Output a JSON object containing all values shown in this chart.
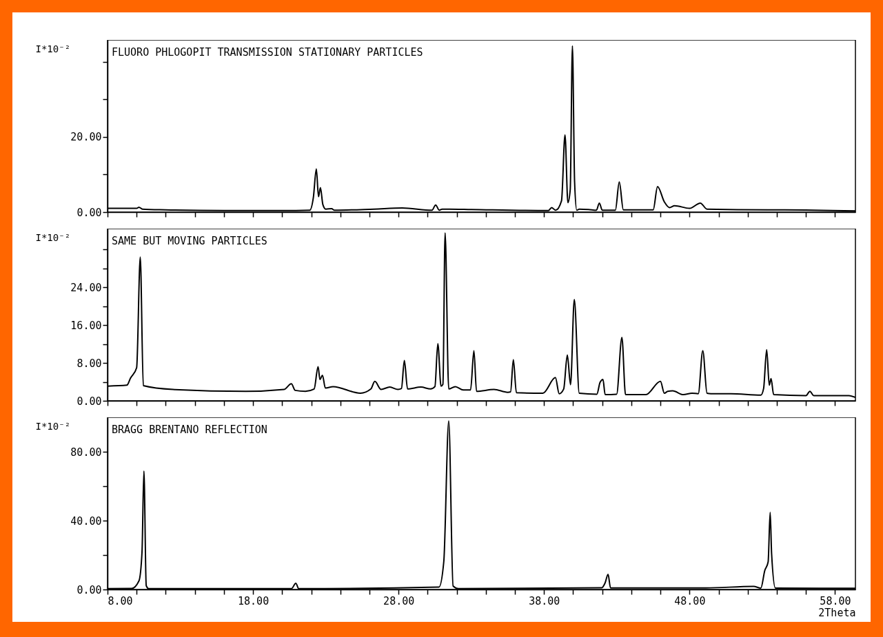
{
  "chart_data": [
    {
      "type": "line",
      "title": "FLUORO PHLOGOPIT TRANSMISSION STATIONARY PARTICLES",
      "ylabel": "I*10⁻²",
      "color": "#000000",
      "tick_labels": "y",
      "x": [
        8,
        10.0,
        10.16,
        10.4,
        12,
        16,
        20,
        21.9,
        22.15,
        22.35,
        22.5,
        22.63,
        22.8,
        23.0,
        23.4,
        23.6,
        26.3,
        28.26,
        30.3,
        30.55,
        30.8,
        31.0,
        31.5,
        33.0,
        38.3,
        38.52,
        38.8,
        39.2,
        39.44,
        39.64,
        39.8,
        39.95,
        40.1,
        40.25,
        40.42,
        41.06,
        41.6,
        41.8,
        42.0,
        42.9,
        43.17,
        43.45,
        45.5,
        45.8,
        46.27,
        46.62,
        46.97,
        48.0,
        48.74,
        49.2,
        53.4,
        54.55,
        59.4
      ],
      "values": [
        1.0,
        1.0,
        1.3,
        0.8,
        0.6,
        0.4,
        0.4,
        0.5,
        4.0,
        11.5,
        4.1,
        6.5,
        2.0,
        0.8,
        0.9,
        0.5,
        0.8,
        1.1,
        0.5,
        1.9,
        0.5,
        0.8,
        0.8,
        0.7,
        0.4,
        1.2,
        0.5,
        3.0,
        20.5,
        2.5,
        6.0,
        44.2,
        8.0,
        0.5,
        0.8,
        0.7,
        0.5,
        2.4,
        0.5,
        0.5,
        8.0,
        0.6,
        0.6,
        6.8,
        2.7,
        1.2,
        1.7,
        1.0,
        2.4,
        0.8,
        0.6,
        0.6,
        0.3
      ],
      "xlim": [
        8,
        59.4
      ],
      "ylim": [
        0,
        45.8
      ],
      "xticks": [
        {
          "value": 8,
          "label": null
        },
        {
          "value": 10,
          "label": null
        },
        {
          "value": 12,
          "label": null
        },
        {
          "value": 14,
          "label": null
        },
        {
          "value": 16,
          "label": null
        },
        {
          "value": 18,
          "label": null
        },
        {
          "value": 20,
          "label": null
        },
        {
          "value": 22,
          "label": null
        },
        {
          "value": 24,
          "label": null
        },
        {
          "value": 26,
          "label": null
        },
        {
          "value": 28,
          "label": null
        },
        {
          "value": 30,
          "label": null
        },
        {
          "value": 32,
          "label": null
        },
        {
          "value": 34,
          "label": null
        },
        {
          "value": 36,
          "label": null
        },
        {
          "value": 38,
          "label": null
        },
        {
          "value": 40,
          "label": null
        },
        {
          "value": 42,
          "label": null
        },
        {
          "value": 44,
          "label": null
        },
        {
          "value": 46,
          "label": null
        },
        {
          "value": 48,
          "label": null
        },
        {
          "value": 50,
          "label": null
        },
        {
          "value": 52,
          "label": null
        },
        {
          "value": 54,
          "label": null
        },
        {
          "value": 56,
          "label": null
        },
        {
          "value": 58,
          "label": null
        }
      ],
      "yticks": [
        {
          "value": 0,
          "label": "0.00"
        },
        {
          "value": 10,
          "label": null
        },
        {
          "value": 20,
          "label": "20.00"
        },
        {
          "value": 30,
          "label": null
        },
        {
          "value": 40,
          "label": null
        }
      ]
    },
    {
      "type": "line",
      "title": "SAME BUT MOVING PARTICLES",
      "ylabel": "I*10⁻²",
      "color": "#000000",
      "tick_labels": "y",
      "x": [
        8,
        9.33,
        9.58,
        10.0,
        10.25,
        10.46,
        12.5,
        17.5,
        20.14,
        20.63,
        20.9,
        21.6,
        22.2,
        22.47,
        22.6,
        22.77,
        22.97,
        23.5,
        25.38,
        26.1,
        26.37,
        26.8,
        27.4,
        27.96,
        28.2,
        28.4,
        28.62,
        29.54,
        30.2,
        30.5,
        30.7,
        30.92,
        31.05,
        31.2,
        31.45,
        31.9,
        32.45,
        32.95,
        33.18,
        33.36,
        34.56,
        35.5,
        35.7,
        35.89,
        36.1,
        37.92,
        38.78,
        39.04,
        39.35,
        39.6,
        39.82,
        40.08,
        40.42,
        41.63,
        41.85,
        42.05,
        42.2,
        42.99,
        43.35,
        43.6,
        45.0,
        46.0,
        46.27,
        46.5,
        46.84,
        47.57,
        48.17,
        48.6,
        48.91,
        49.2,
        49.47,
        50.84,
        52.9,
        53.09,
        53.3,
        53.48,
        53.6,
        53.78,
        56.0,
        56.27,
        56.53,
        58.95,
        59.4
      ],
      "values": [
        3.1,
        3.3,
        4.8,
        7.0,
        30.4,
        3.2,
        2.4,
        2.0,
        2.4,
        3.6,
        2.2,
        2.0,
        2.5,
        7.2,
        4.5,
        5.4,
        2.7,
        3.0,
        1.6,
        2.5,
        4.1,
        2.4,
        2.9,
        2.4,
        2.6,
        8.5,
        2.5,
        2.9,
        2.5,
        3.0,
        12.1,
        3.1,
        3.5,
        35.5,
        2.5,
        3.0,
        2.3,
        2.3,
        10.6,
        2.0,
        2.4,
        1.8,
        1.9,
        8.7,
        1.7,
        1.6,
        4.9,
        1.5,
        2.5,
        9.7,
        3.4,
        21.4,
        1.6,
        1.4,
        3.9,
        4.5,
        1.3,
        1.4,
        13.4,
        1.3,
        1.3,
        4.1,
        1.6,
        2.0,
        2.1,
        1.3,
        1.6,
        1.5,
        10.6,
        1.6,
        1.5,
        1.5,
        1.2,
        2.6,
        10.8,
        3.3,
        4.7,
        1.3,
        1.1,
        2.0,
        1.1,
        1.1,
        0.7
      ],
      "xlim": [
        8,
        59.4
      ],
      "ylim": [
        0,
        36.4
      ],
      "xticks": [
        {
          "value": 8,
          "label": null
        },
        {
          "value": 10,
          "label": null
        },
        {
          "value": 12,
          "label": null
        },
        {
          "value": 14,
          "label": null
        },
        {
          "value": 16,
          "label": null
        },
        {
          "value": 18,
          "label": null
        },
        {
          "value": 20,
          "label": null
        },
        {
          "value": 22,
          "label": null
        },
        {
          "value": 24,
          "label": null
        },
        {
          "value": 26,
          "label": null
        },
        {
          "value": 28,
          "label": null
        },
        {
          "value": 30,
          "label": null
        },
        {
          "value": 32,
          "label": null
        },
        {
          "value": 34,
          "label": null
        },
        {
          "value": 36,
          "label": null
        },
        {
          "value": 38,
          "label": null
        },
        {
          "value": 40,
          "label": null
        },
        {
          "value": 42,
          "label": null
        },
        {
          "value": 44,
          "label": null
        },
        {
          "value": 46,
          "label": null
        },
        {
          "value": 48,
          "label": null
        },
        {
          "value": 50,
          "label": null
        },
        {
          "value": 52,
          "label": null
        },
        {
          "value": 54,
          "label": null
        },
        {
          "value": 56,
          "label": null
        },
        {
          "value": 58,
          "label": null
        }
      ],
      "yticks": [
        {
          "value": 0,
          "label": "0.00"
        },
        {
          "value": 4,
          "label": null
        },
        {
          "value": 8,
          "label": "8.00"
        },
        {
          "value": 12,
          "label": null
        },
        {
          "value": 16,
          "label": "16.00"
        },
        {
          "value": 20,
          "label": null
        },
        {
          "value": 24,
          "label": "24.00"
        },
        {
          "value": 28,
          "label": null
        },
        {
          "value": 32,
          "label": null
        }
      ]
    },
    {
      "type": "line",
      "title": "BRAGG BRENTANO REFLECTION",
      "ylabel": "I*10⁻²",
      "xlabel": "2Theta",
      "color": "#000000",
      "x": [
        8,
        9.66,
        10.16,
        10.37,
        10.5,
        10.66,
        10.83,
        20.64,
        20.94,
        21.14,
        30.78,
        31.11,
        31.45,
        31.75,
        32.11,
        41.97,
        42.19,
        42.4,
        42.57,
        49.11,
        52.4,
        52.9,
        53.17,
        53.4,
        53.54,
        53.64,
        53.9,
        59.4
      ],
      "values": [
        0.5,
        0.6,
        5,
        21.8,
        68.8,
        2.2,
        0.5,
        0.5,
        3.6,
        0.5,
        1.4,
        16.2,
        97.9,
        2,
        0.5,
        1.0,
        3.7,
        8.8,
        0.9,
        0.9,
        1.8,
        0.8,
        11,
        16,
        44.8,
        20.7,
        0.8,
        0.7
      ],
      "xlim": [
        8,
        59.4
      ],
      "ylim": [
        0,
        100
      ],
      "xticks": [
        {
          "value": 8,
          "label": "8.00"
        },
        {
          "value": 10,
          "label": null
        },
        {
          "value": 12,
          "label": null
        },
        {
          "value": 14,
          "label": null
        },
        {
          "value": 16,
          "label": null
        },
        {
          "value": 18,
          "label": "18.00"
        },
        {
          "value": 20,
          "label": null
        },
        {
          "value": 22,
          "label": null
        },
        {
          "value": 24,
          "label": null
        },
        {
          "value": 26,
          "label": null
        },
        {
          "value": 28,
          "label": "28.00"
        },
        {
          "value": 30,
          "label": null
        },
        {
          "value": 32,
          "label": null
        },
        {
          "value": 34,
          "label": null
        },
        {
          "value": 36,
          "label": null
        },
        {
          "value": 38,
          "label": "38.00"
        },
        {
          "value": 40,
          "label": null
        },
        {
          "value": 42,
          "label": null
        },
        {
          "value": 44,
          "label": null
        },
        {
          "value": 46,
          "label": null
        },
        {
          "value": 48,
          "label": "48.00"
        },
        {
          "value": 50,
          "label": null
        },
        {
          "value": 52,
          "label": null
        },
        {
          "value": 54,
          "label": null
        },
        {
          "value": 56,
          "label": null
        },
        {
          "value": 58,
          "label": "58.00"
        }
      ],
      "yticks": [
        {
          "value": 0,
          "label": "0.00"
        },
        {
          "value": 20,
          "label": null
        },
        {
          "value": 40,
          "label": "40.00"
        },
        {
          "value": 60,
          "label": null
        },
        {
          "value": 80,
          "label": "80.00"
        }
      ]
    }
  ]
}
